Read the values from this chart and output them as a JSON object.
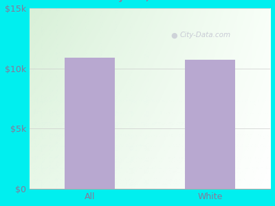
{
  "categories": [
    "All",
    "White"
  ],
  "values": [
    10900,
    10750
  ],
  "bar_color": "#b8a8d0",
  "background_color": "#00efef",
  "title_color": "#222222",
  "title_fontsize": 12.5,
  "subtitle_fontsize": 9.5,
  "subtitle_color": "#997799",
  "tick_color": "#887799",
  "ylim": [
    0,
    15000
  ],
  "yticks": [
    0,
    5000,
    10000,
    15000
  ],
  "ytick_labels": [
    "$0",
    "$5k",
    "$10k",
    "$15k"
  ],
  "watermark": "City-Data.com",
  "plot_bg_topleft": "#e8f5e8",
  "plot_bg_topright": "#f5fff5",
  "plot_bg_bottomleft": "#edfaed",
  "plot_bg_bottomright": "#ffffff"
}
